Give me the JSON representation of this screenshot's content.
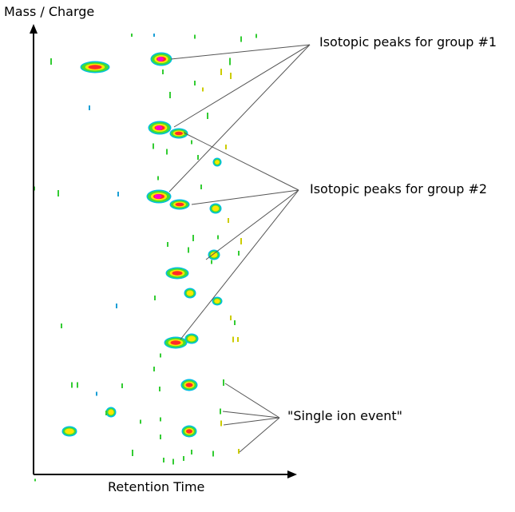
{
  "axes": {
    "y_label": "Mass / Charge",
    "x_label": "Retention Time"
  },
  "annotations": [
    {
      "id": "group1",
      "text": "Isotopic peaks for group #1"
    },
    {
      "id": "group2",
      "text": "Isotopic peaks for group #2"
    },
    {
      "id": "single",
      "text": "\"Single ion event\""
    }
  ],
  "colors": {
    "axis": "#000000",
    "leader": "#555555",
    "peak_core": "#ff00cc",
    "peak_high": "#ff2a2a",
    "peak_mid": "#ffe600",
    "peak_low": "#44dd33",
    "peak_edge": "#00bfe0",
    "single_ion_green": "#33cc33",
    "single_ion_yellow": "#cccc00",
    "single_ion_blue": "#1a9fd6"
  }
}
